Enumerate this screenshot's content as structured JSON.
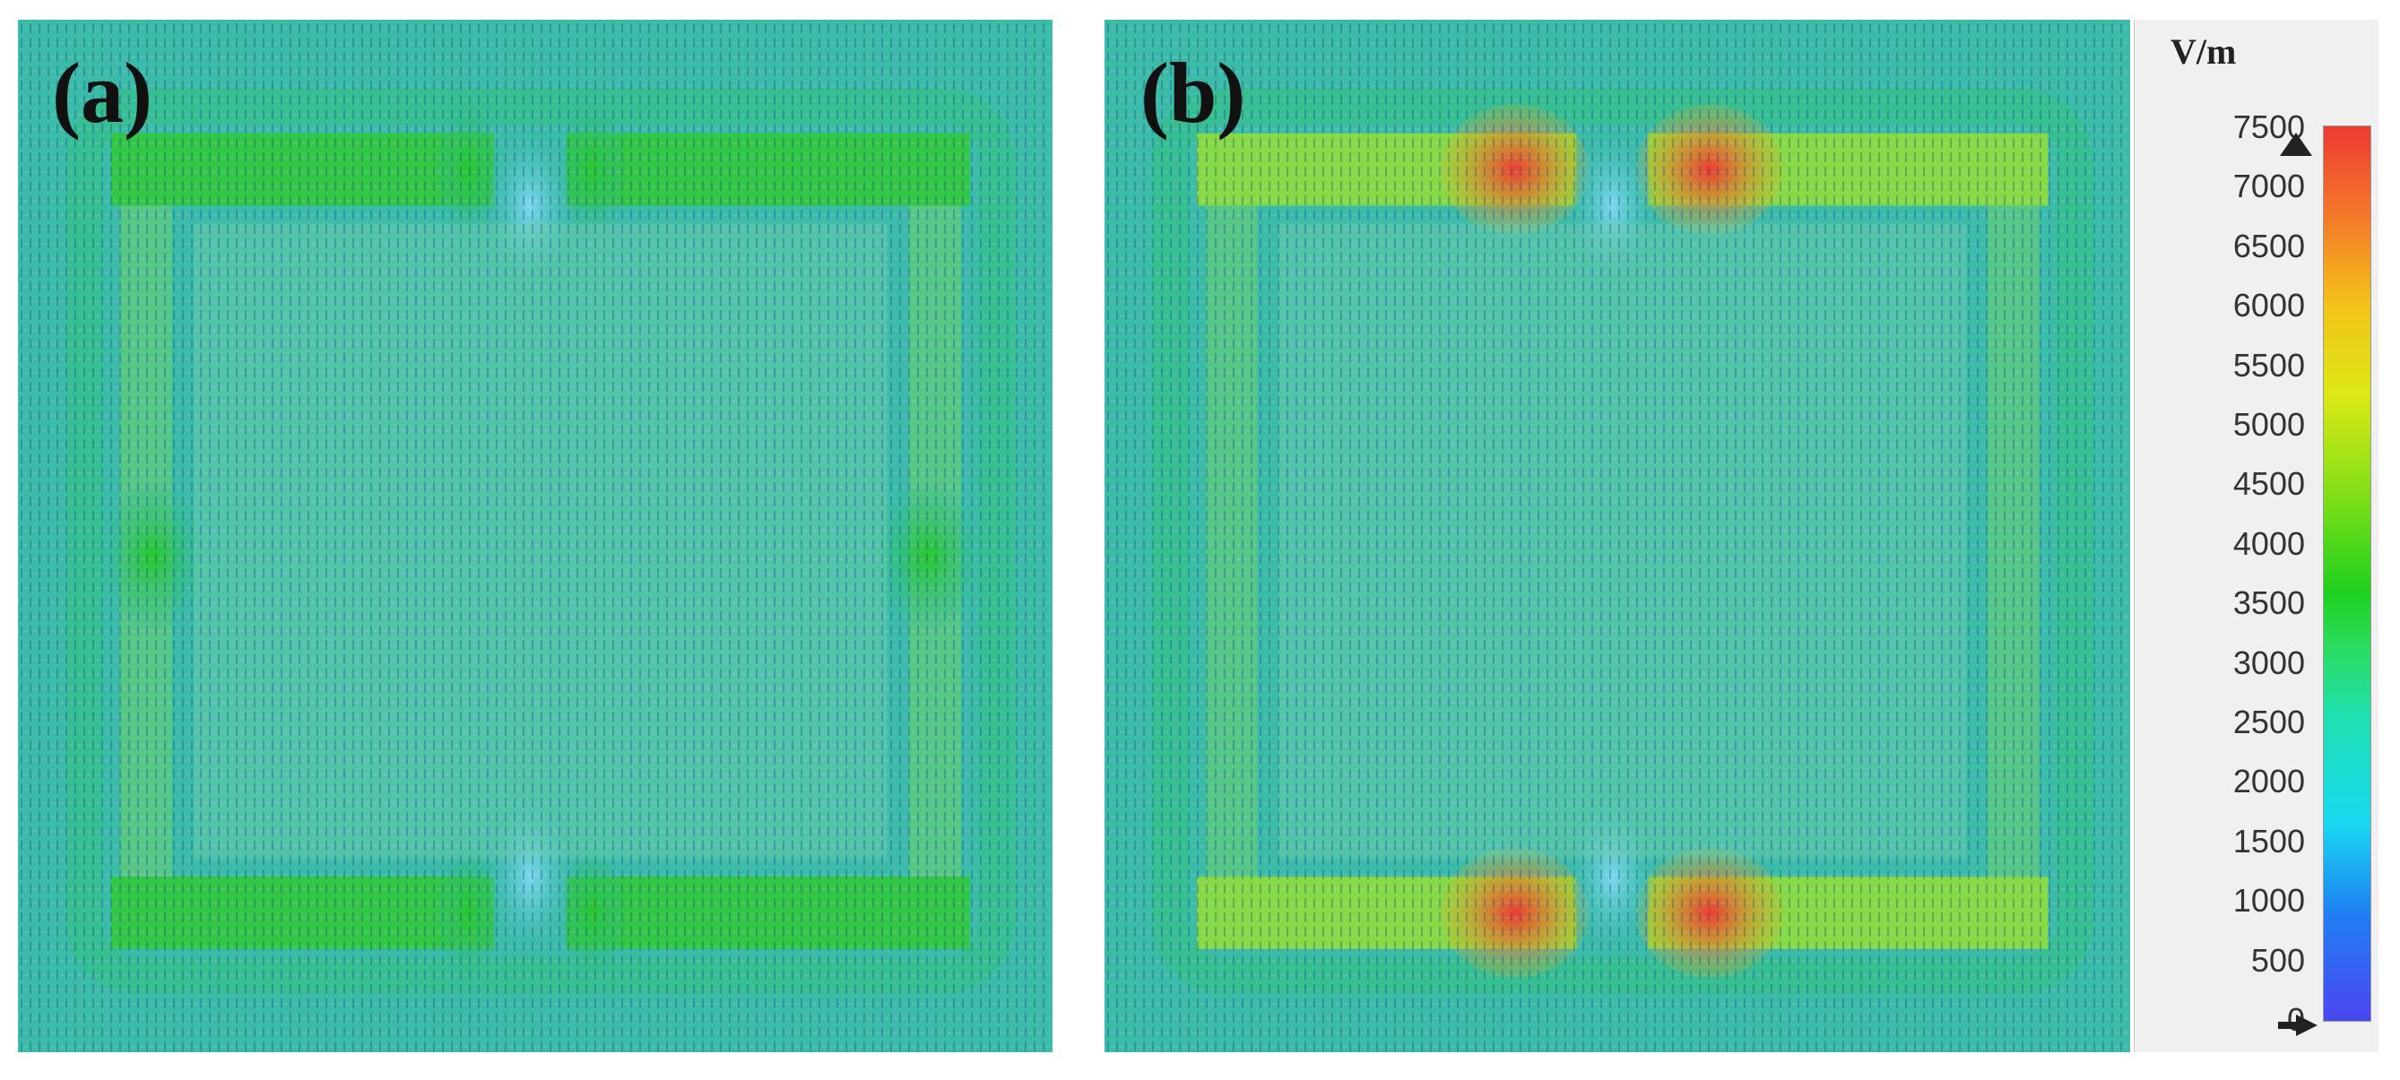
{
  "panels": [
    {
      "label": "(a)"
    },
    {
      "label": "(b)"
    }
  ],
  "legend": {
    "unit": "V/m",
    "ticks": [
      "7500",
      "7000",
      "6500",
      "6000",
      "5500",
      "5000",
      "4500",
      "4000",
      "3500",
      "3000",
      "2500",
      "2000",
      "1500",
      "1000",
      "500",
      "0"
    ]
  },
  "colors": {
    "background_field": "#35b7a6",
    "arrow_dark": "#1b4d8c",
    "arrow_light": "#9fe8d8",
    "high_field": "#ee3a32",
    "mid_field": "#1fd01f"
  }
}
